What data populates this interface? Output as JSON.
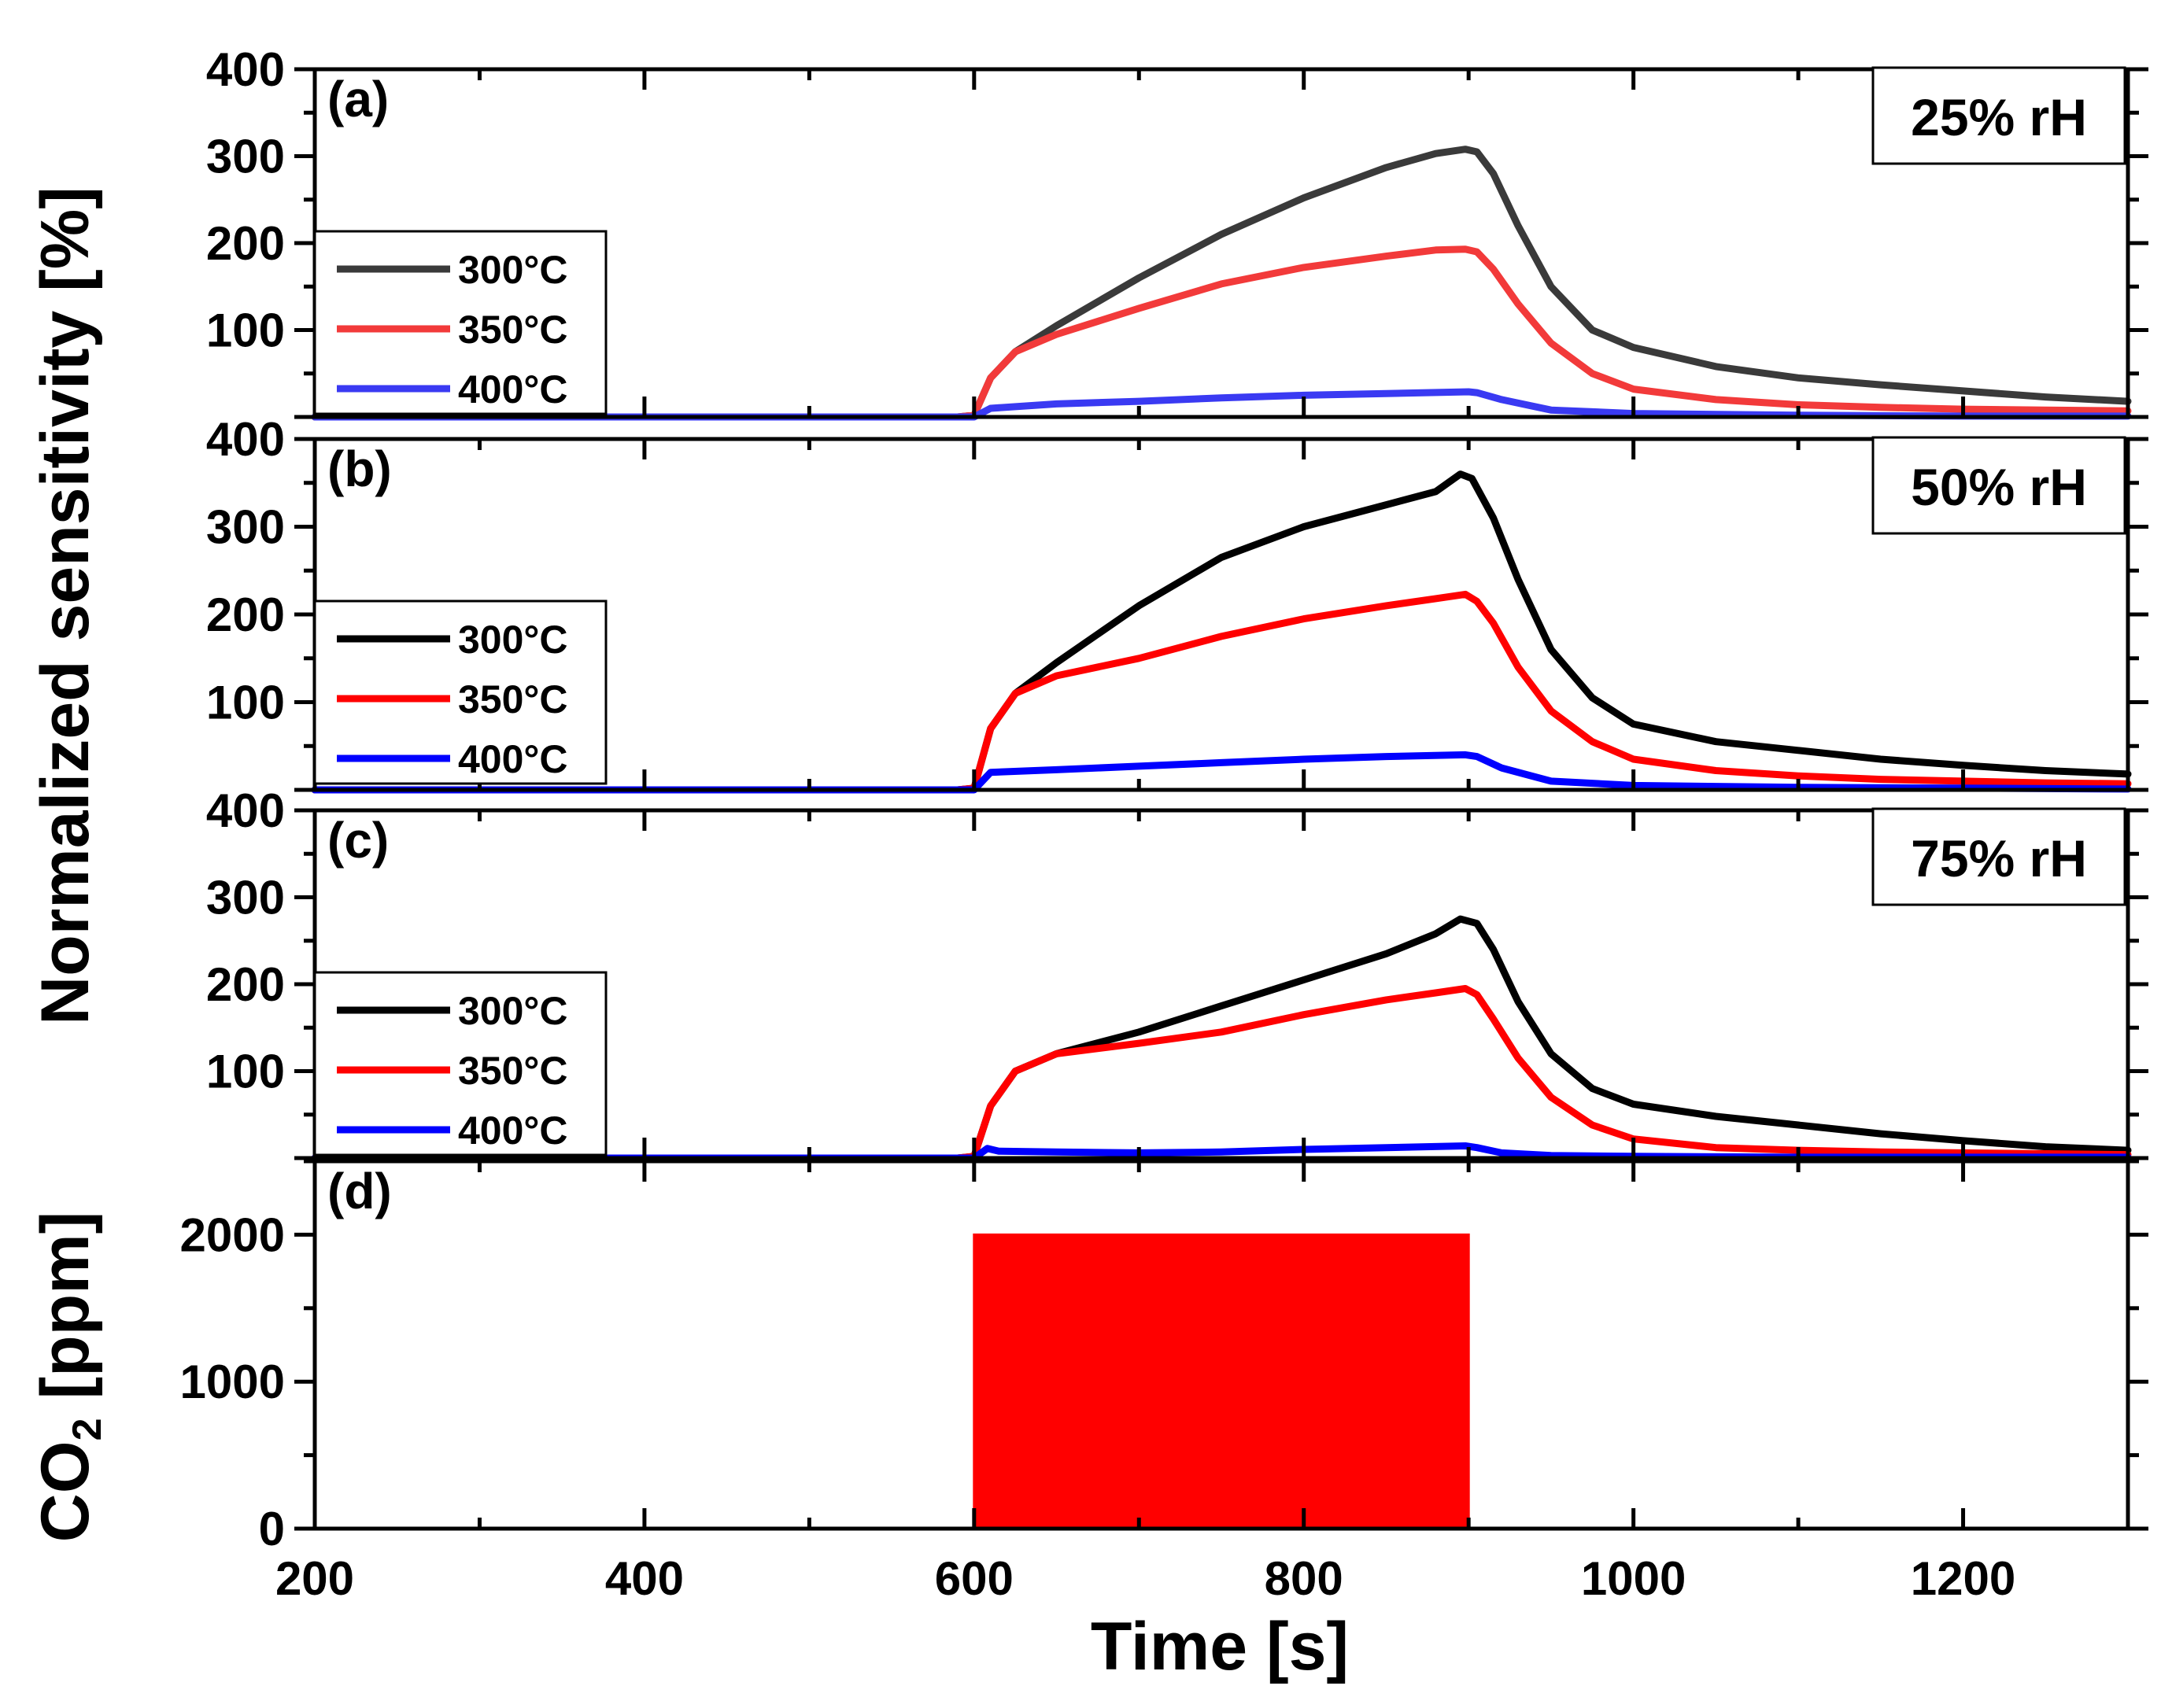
{
  "figure": {
    "ylabel_top": "Normalized sensitivity [%]",
    "ylabel_bottom_main": "CO",
    "ylabel_bottom_sub": "2",
    "ylabel_bottom_unit": " [ppm]",
    "xlabel": "Time [s]"
  },
  "chart_data": [
    {
      "type": "line",
      "panel": "(a)",
      "annotation": "25% rH",
      "xlim": [
        200,
        1300
      ],
      "ylim": [
        0,
        400
      ],
      "yticks": [
        "100",
        "200",
        "300",
        "400"
      ],
      "legend_position": "left",
      "series": [
        {
          "name": "300°C",
          "color": "#3a3a3a",
          "x": [
            200,
            590,
            600,
            610,
            625,
            650,
            700,
            750,
            800,
            850,
            880,
            898,
            905,
            915,
            930,
            950,
            975,
            1000,
            1050,
            1100,
            1150,
            1200,
            1250,
            1300
          ],
          "y": [
            0,
            0,
            2,
            45,
            75,
            105,
            160,
            210,
            252,
            287,
            303,
            308,
            305,
            280,
            220,
            150,
            100,
            80,
            58,
            45,
            37,
            30,
            23,
            18
          ]
        },
        {
          "name": "350°C",
          "color": "#f23a3a",
          "x": [
            200,
            590,
            600,
            610,
            625,
            650,
            700,
            750,
            800,
            850,
            880,
            898,
            905,
            915,
            930,
            950,
            975,
            1000,
            1050,
            1100,
            1150,
            1200,
            1250,
            1300
          ],
          "y": [
            0,
            0,
            2,
            45,
            75,
            95,
            125,
            153,
            172,
            185,
            192,
            193,
            190,
            170,
            130,
            85,
            50,
            32,
            20,
            14,
            11,
            9,
            8,
            7
          ]
        },
        {
          "name": "400°C",
          "color": "#3a3af2",
          "x": [
            200,
            590,
            600,
            610,
            650,
            700,
            750,
            800,
            850,
            900,
            905,
            920,
            950,
            1000,
            1100,
            1200,
            1300
          ],
          "y": [
            0,
            0,
            0,
            10,
            15,
            18,
            22,
            25,
            27,
            29,
            28,
            20,
            8,
            4,
            2,
            1,
            1
          ]
        }
      ]
    },
    {
      "type": "line",
      "panel": "(b)",
      "annotation": "50% rH",
      "xlim": [
        200,
        1300
      ],
      "ylim": [
        0,
        400
      ],
      "yticks": [
        "100",
        "200",
        "300",
        "400"
      ],
      "legend_position": "left",
      "series": [
        {
          "name": "300°C",
          "color": "#000000",
          "x": [
            200,
            590,
            600,
            610,
            625,
            650,
            700,
            750,
            800,
            850,
            880,
            895,
            902,
            915,
            930,
            950,
            975,
            1000,
            1050,
            1100,
            1150,
            1200,
            1250,
            1300
          ],
          "y": [
            0,
            0,
            2,
            70,
            110,
            145,
            210,
            265,
            300,
            325,
            340,
            360,
            355,
            310,
            240,
            160,
            105,
            75,
            55,
            45,
            35,
            28,
            22,
            18
          ]
        },
        {
          "name": "350°C",
          "color": "#ff0000",
          "x": [
            200,
            590,
            600,
            610,
            625,
            650,
            700,
            750,
            800,
            850,
            880,
            898,
            905,
            915,
            930,
            950,
            975,
            1000,
            1050,
            1100,
            1150,
            1200,
            1250,
            1300
          ],
          "y": [
            0,
            0,
            2,
            70,
            110,
            130,
            150,
            175,
            195,
            210,
            218,
            223,
            215,
            190,
            140,
            90,
            55,
            35,
            22,
            16,
            12,
            10,
            8,
            7
          ]
        },
        {
          "name": "400°C",
          "color": "#0000ff",
          "x": [
            200,
            590,
            600,
            610,
            650,
            700,
            750,
            800,
            850,
            898,
            905,
            920,
            950,
            1000,
            1100,
            1200,
            1300
          ],
          "y": [
            0,
            0,
            0,
            20,
            23,
            27,
            31,
            35,
            38,
            40,
            38,
            25,
            10,
            5,
            3,
            2,
            1
          ]
        }
      ]
    },
    {
      "type": "line",
      "panel": "(c)",
      "annotation": "75% rH",
      "xlim": [
        200,
        1300
      ],
      "ylim": [
        0,
        400
      ],
      "yticks": [
        "100",
        "200",
        "300",
        "400"
      ],
      "legend_position": "left",
      "series": [
        {
          "name": "300°C",
          "color": "#000000",
          "x": [
            200,
            590,
            600,
            610,
            625,
            650,
            700,
            750,
            800,
            850,
            880,
            895,
            905,
            915,
            930,
            950,
            975,
            1000,
            1050,
            1100,
            1150,
            1200,
            1250,
            1300
          ],
          "y": [
            0,
            0,
            2,
            60,
            100,
            120,
            145,
            175,
            205,
            235,
            258,
            275,
            270,
            240,
            180,
            120,
            80,
            62,
            48,
            38,
            28,
            20,
            13,
            9
          ]
        },
        {
          "name": "350°C",
          "color": "#ff0000",
          "x": [
            200,
            590,
            600,
            610,
            625,
            650,
            700,
            750,
            800,
            850,
            880,
            898,
            905,
            915,
            930,
            950,
            975,
            1000,
            1050,
            1100,
            1150,
            1200,
            1250,
            1300
          ],
          "y": [
            0,
            0,
            2,
            60,
            100,
            120,
            132,
            145,
            165,
            182,
            190,
            195,
            188,
            160,
            115,
            70,
            38,
            22,
            12,
            9,
            7,
            6,
            5,
            4
          ]
        },
        {
          "name": "400°C",
          "color": "#0000ff",
          "x": [
            200,
            590,
            600,
            608,
            615,
            650,
            700,
            750,
            800,
            850,
            898,
            905,
            920,
            950,
            1000,
            1100,
            1200,
            1300
          ],
          "y": [
            0,
            0,
            0,
            11,
            8,
            7,
            6,
            7,
            10,
            12,
            14,
            12,
            6,
            3,
            2,
            1,
            1,
            1
          ]
        }
      ]
    },
    {
      "type": "area",
      "panel": "(d)",
      "xlim": [
        200,
        1300
      ],
      "ylim": [
        0,
        2500
      ],
      "yticks": [
        "0",
        "1000",
        "2000"
      ],
      "xticks": [
        "200",
        "400",
        "600",
        "800",
        "1000",
        "1200"
      ],
      "series": [
        {
          "name": "",
          "color": "#ff0000",
          "x": [
            200,
            600,
            600,
            900,
            900,
            1300
          ],
          "y": [
            0,
            0,
            2000,
            2000,
            0,
            0
          ]
        }
      ]
    }
  ]
}
